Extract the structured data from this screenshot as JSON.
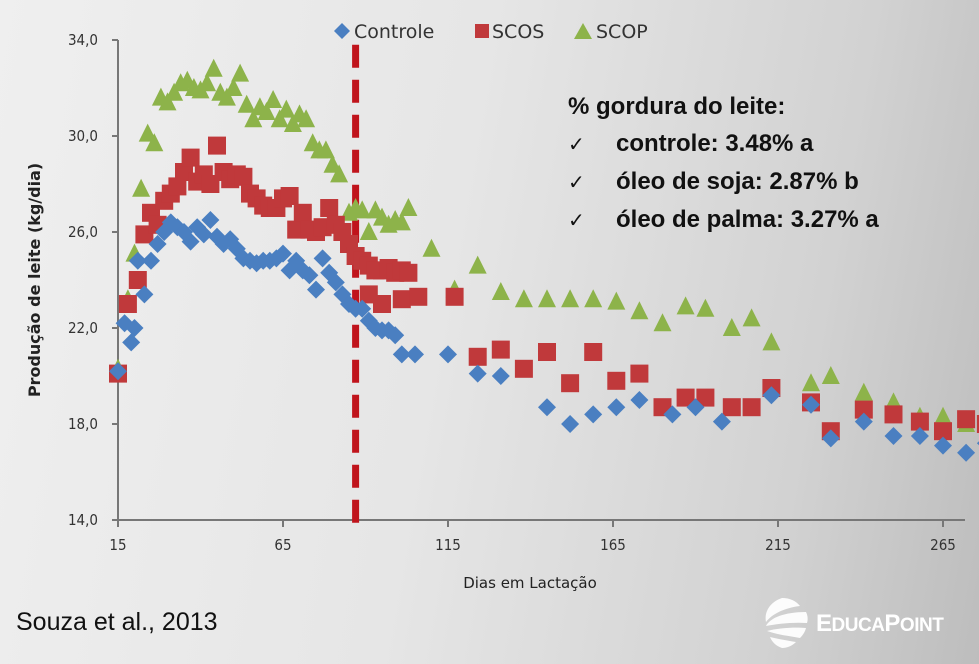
{
  "chart_data": {
    "type": "scatter",
    "title": "",
    "xlabel": "Dias em Lactação",
    "ylabel": "Produção de leite (kg/dia)",
    "xlim": [
      15,
      277
    ],
    "ylim": [
      14,
      34
    ],
    "xticks": [
      15,
      65,
      115,
      165,
      215,
      265
    ],
    "yticks": [
      14,
      18,
      22,
      26,
      30,
      34
    ],
    "xtick_labels": [
      "15",
      "65",
      "115",
      "165",
      "215",
      "265"
    ],
    "ytick_labels": [
      "14,0",
      "18,0",
      "22,0",
      "26,0",
      "30,0",
      "34,0"
    ],
    "grid": false,
    "legend_position": "top-center",
    "vertical_reference_line": {
      "x": 87,
      "style": "dashed",
      "color": "#c0141c"
    },
    "series": [
      {
        "name": "Controle",
        "marker": "diamond",
        "color": "#4a7fc1",
        "points": [
          [
            15,
            20.2
          ],
          [
            17,
            22.2
          ],
          [
            19,
            21.4
          ],
          [
            20,
            22.0
          ],
          [
            21,
            24.8
          ],
          [
            23,
            23.4
          ],
          [
            25,
            24.8
          ],
          [
            27,
            25.5
          ],
          [
            29,
            26.0
          ],
          [
            31,
            26.4
          ],
          [
            33,
            26.2
          ],
          [
            35,
            26.0
          ],
          [
            37,
            25.6
          ],
          [
            39,
            26.2
          ],
          [
            41,
            25.9
          ],
          [
            43,
            26.5
          ],
          [
            45,
            25.8
          ],
          [
            47,
            25.5
          ],
          [
            49,
            25.7
          ],
          [
            51,
            25.3
          ],
          [
            53,
            24.9
          ],
          [
            55,
            24.8
          ],
          [
            57,
            24.7
          ],
          [
            59,
            24.8
          ],
          [
            61,
            24.8
          ],
          [
            63,
            24.9
          ],
          [
            65,
            25.1
          ],
          [
            67,
            24.4
          ],
          [
            69,
            24.8
          ],
          [
            71,
            24.4
          ],
          [
            73,
            24.2
          ],
          [
            75,
            23.6
          ],
          [
            77,
            24.9
          ],
          [
            79,
            24.3
          ],
          [
            81,
            23.9
          ],
          [
            83,
            23.4
          ],
          [
            85,
            23.0
          ],
          [
            87,
            22.8
          ],
          [
            89,
            22.8
          ],
          [
            91,
            22.3
          ],
          [
            93,
            22.0
          ],
          [
            95,
            21.9
          ],
          [
            97,
            21.9
          ],
          [
            99,
            21.7
          ],
          [
            101,
            20.9
          ],
          [
            105,
            20.9
          ],
          [
            115,
            20.9
          ],
          [
            124,
            20.1
          ],
          [
            131,
            20.0
          ],
          [
            145,
            18.7
          ],
          [
            152,
            18.0
          ],
          [
            159,
            18.4
          ],
          [
            166,
            18.7
          ],
          [
            173,
            19.0
          ],
          [
            183,
            18.4
          ],
          [
            190,
            18.7
          ],
          [
            198,
            18.1
          ],
          [
            213,
            19.2
          ],
          [
            225,
            18.8
          ],
          [
            231,
            17.4
          ],
          [
            241,
            18.1
          ],
          [
            250,
            17.5
          ],
          [
            258,
            17.5
          ],
          [
            265,
            17.1
          ],
          [
            272,
            16.8
          ],
          [
            278,
            17.2
          ]
        ]
      },
      {
        "name": "SCOS",
        "marker": "square",
        "color": "#c0393b",
        "points": [
          [
            15,
            20.1
          ],
          [
            18,
            23.0
          ],
          [
            21,
            24.0
          ],
          [
            23,
            25.9
          ],
          [
            25,
            26.8
          ],
          [
            27,
            26.3
          ],
          [
            29,
            27.3
          ],
          [
            31,
            27.6
          ],
          [
            33,
            27.9
          ],
          [
            35,
            28.5
          ],
          [
            37,
            29.1
          ],
          [
            39,
            28.1
          ],
          [
            41,
            28.4
          ],
          [
            43,
            28.0
          ],
          [
            45,
            29.6
          ],
          [
            47,
            28.5
          ],
          [
            49,
            28.2
          ],
          [
            51,
            28.4
          ],
          [
            53,
            28.3
          ],
          [
            55,
            27.6
          ],
          [
            57,
            27.4
          ],
          [
            59,
            27.1
          ],
          [
            61,
            27.0
          ],
          [
            63,
            27.0
          ],
          [
            65,
            27.4
          ],
          [
            67,
            27.5
          ],
          [
            69,
            26.1
          ],
          [
            71,
            26.8
          ],
          [
            73,
            26.1
          ],
          [
            75,
            26.0
          ],
          [
            77,
            26.2
          ],
          [
            79,
            27.0
          ],
          [
            81,
            26.3
          ],
          [
            83,
            26.0
          ],
          [
            85,
            25.5
          ],
          [
            87,
            25.0
          ],
          [
            89,
            24.8
          ],
          [
            91,
            24.6
          ],
          [
            93,
            24.4
          ],
          [
            95,
            24.4
          ],
          [
            97,
            24.5
          ],
          [
            99,
            24.3
          ],
          [
            101,
            24.4
          ],
          [
            103,
            24.3
          ],
          [
            91,
            23.4
          ],
          [
            95,
            23.0
          ],
          [
            101,
            23.2
          ],
          [
            106,
            23.3
          ],
          [
            117,
            23.3
          ],
          [
            124,
            20.8
          ],
          [
            131,
            21.1
          ],
          [
            138,
            20.3
          ],
          [
            145,
            21.0
          ],
          [
            152,
            19.7
          ],
          [
            159,
            21.0
          ],
          [
            166,
            19.8
          ],
          [
            173,
            20.1
          ],
          [
            180,
            18.7
          ],
          [
            187,
            19.1
          ],
          [
            193,
            19.1
          ],
          [
            201,
            18.7
          ],
          [
            207,
            18.7
          ],
          [
            213,
            19.5
          ],
          [
            225,
            18.9
          ],
          [
            231,
            17.7
          ],
          [
            241,
            18.6
          ],
          [
            250,
            18.4
          ],
          [
            258,
            18.1
          ],
          [
            265,
            17.7
          ],
          [
            272,
            18.2
          ],
          [
            278,
            18.0
          ]
        ]
      },
      {
        "name": "SCOP",
        "marker": "triangle",
        "color": "#8db34a",
        "points": [
          [
            15,
            20.3
          ],
          [
            18,
            23.2
          ],
          [
            20,
            25.1
          ],
          [
            22,
            27.8
          ],
          [
            24,
            30.1
          ],
          [
            26,
            29.7
          ],
          [
            28,
            31.6
          ],
          [
            30,
            31.4
          ],
          [
            32,
            31.8
          ],
          [
            34,
            32.2
          ],
          [
            36,
            32.3
          ],
          [
            38,
            32.0
          ],
          [
            40,
            31.9
          ],
          [
            42,
            32.2
          ],
          [
            44,
            32.8
          ],
          [
            46,
            31.8
          ],
          [
            48,
            31.6
          ],
          [
            50,
            32.0
          ],
          [
            52,
            32.6
          ],
          [
            54,
            31.3
          ],
          [
            56,
            30.7
          ],
          [
            58,
            31.2
          ],
          [
            60,
            31.0
          ],
          [
            62,
            31.5
          ],
          [
            64,
            30.7
          ],
          [
            66,
            31.1
          ],
          [
            68,
            30.5
          ],
          [
            70,
            30.9
          ],
          [
            72,
            30.7
          ],
          [
            74,
            29.7
          ],
          [
            76,
            29.4
          ],
          [
            78,
            29.4
          ],
          [
            80,
            28.8
          ],
          [
            82,
            28.4
          ],
          [
            85,
            26.8
          ],
          [
            87,
            27.0
          ],
          [
            89,
            26.9
          ],
          [
            91,
            26.0
          ],
          [
            93,
            26.9
          ],
          [
            95,
            26.6
          ],
          [
            97,
            26.3
          ],
          [
            99,
            26.5
          ],
          [
            101,
            26.4
          ],
          [
            103,
            27.0
          ],
          [
            110,
            25.3
          ],
          [
            117,
            23.6
          ],
          [
            124,
            24.6
          ],
          [
            131,
            23.5
          ],
          [
            138,
            23.2
          ],
          [
            145,
            23.2
          ],
          [
            152,
            23.2
          ],
          [
            159,
            23.2
          ],
          [
            166,
            23.1
          ],
          [
            173,
            22.7
          ],
          [
            180,
            22.2
          ],
          [
            187,
            22.9
          ],
          [
            193,
            22.8
          ],
          [
            201,
            22.0
          ],
          [
            207,
            22.4
          ],
          [
            213,
            21.4
          ],
          [
            225,
            19.7
          ],
          [
            231,
            20.0
          ],
          [
            241,
            19.3
          ],
          [
            250,
            18.9
          ],
          [
            258,
            18.3
          ],
          [
            265,
            18.3
          ],
          [
            272,
            18.0
          ],
          [
            278,
            18.0
          ]
        ]
      }
    ]
  },
  "annotation": {
    "title": "% gordura do leite:",
    "items": [
      {
        "check": "✓",
        "text": "controle: 3.48% a"
      },
      {
        "check": "✓",
        "text": "óleo de soja: 2.87% b"
      },
      {
        "check": "✓",
        "text": "óleo de palma: 3.27% a"
      }
    ]
  },
  "citation": "Souza et al., 2013",
  "logo": {
    "text_big": "E",
    "text_small": "DUCA",
    "text_big2": "P",
    "text_small2": "OINT",
    "icon": "globe-icon"
  }
}
